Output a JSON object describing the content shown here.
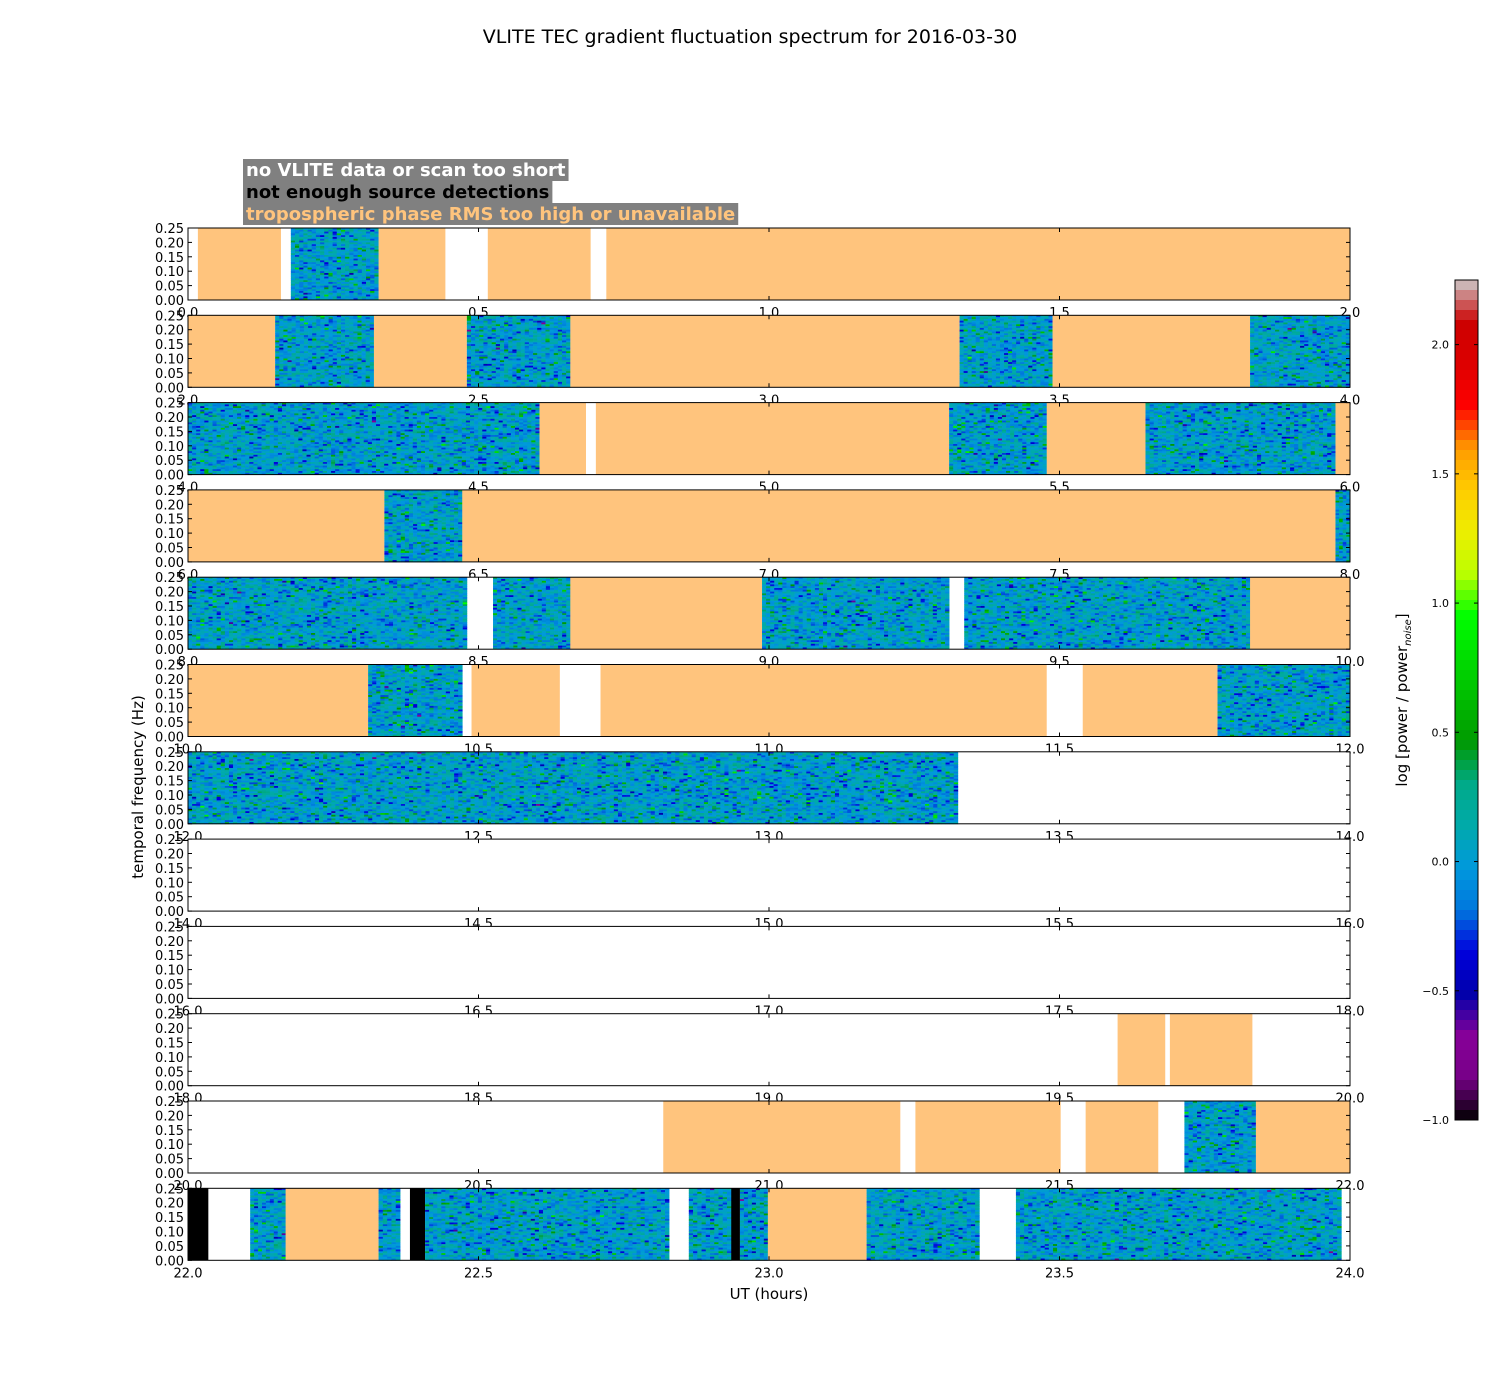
{
  "chart_data": {
    "type": "heatmap",
    "title": "VLITE TEC gradient fluctuation spectrum for 2016-03-30",
    "xlabel": "UT (hours)",
    "ylabel": "temporal frequency (Hz)",
    "ylim": [
      0,
      0.25
    ],
    "yticks": [
      "0.00",
      "0.05",
      "0.10",
      "0.15",
      "0.20",
      "0.25"
    ],
    "colorbar": {
      "label_base": "log [power / power",
      "label_sub": "noise",
      "label_end": "]",
      "range": [
        -1.0,
        2.25
      ],
      "ticks": [
        "−1.0",
        "−0.5",
        "0.0",
        "0.5",
        "1.0",
        "1.5",
        "2.0"
      ],
      "colormap": "nipy_spectral"
    },
    "legend": [
      {
        "text": "no VLITE data or scan too short",
        "color": "#ffffff"
      },
      {
        "text": "not enough source detections",
        "color": "#000000"
      },
      {
        "text": "tropospheric phase RMS too high or unavailable",
        "color": "#ffc47d"
      }
    ],
    "legend_background": "#808080",
    "category_colors": {
      "none": "#ffffff",
      "detect": "#000000",
      "tropo": "#ffc47d"
    },
    "panels": [
      {
        "xlim": [
          0,
          2
        ],
        "xticks": [
          "0.0",
          "0.5",
          "1.0",
          "1.5",
          "2.0"
        ],
        "segments": [
          [
            0,
            0.017,
            "none"
          ],
          [
            0.017,
            0.16,
            "tropo"
          ],
          [
            0.16,
            0.177,
            "none"
          ],
          [
            0.177,
            0.328,
            "spec"
          ],
          [
            0.328,
            0.443,
            "tropo"
          ],
          [
            0.443,
            0.516,
            "none"
          ],
          [
            0.516,
            0.693,
            "tropo"
          ],
          [
            0.693,
            0.72,
            "none"
          ],
          [
            0.72,
            2.0,
            "tropo"
          ]
        ]
      },
      {
        "xlim": [
          2,
          4
        ],
        "xticks": [
          "2.0",
          "2.5",
          "3.0",
          "3.5",
          "4.0"
        ],
        "segments": [
          [
            2.0,
            2.15,
            "tropo"
          ],
          [
            2.15,
            2.32,
            "spec"
          ],
          [
            2.32,
            2.48,
            "tropo"
          ],
          [
            2.48,
            2.658,
            "spec"
          ],
          [
            2.658,
            3.328,
            "tropo"
          ],
          [
            3.328,
            3.488,
            "spec"
          ],
          [
            3.488,
            3.828,
            "tropo"
          ],
          [
            3.828,
            4.0,
            "spec"
          ]
        ]
      },
      {
        "xlim": [
          4,
          6
        ],
        "xticks": [
          "4.0",
          "4.5",
          "5.0",
          "5.5",
          "6.0"
        ],
        "segments": [
          [
            4.0,
            4.605,
            "spec"
          ],
          [
            4.605,
            4.685,
            "tropo"
          ],
          [
            4.685,
            4.702,
            "none"
          ],
          [
            4.702,
            5.31,
            "tropo"
          ],
          [
            5.31,
            5.478,
            "spec"
          ],
          [
            5.478,
            5.648,
            "tropo"
          ],
          [
            5.648,
            5.975,
            "spec"
          ],
          [
            5.975,
            6.0,
            "tropo"
          ]
        ]
      },
      {
        "xlim": [
          6,
          8
        ],
        "xticks": [
          "6.0",
          "6.5",
          "7.0",
          "7.5",
          "8.0"
        ],
        "segments": [
          [
            6.0,
            6.338,
            "tropo"
          ],
          [
            6.338,
            6.472,
            "spec"
          ],
          [
            6.472,
            7.975,
            "tropo"
          ],
          [
            7.975,
            8.0,
            "spec"
          ]
        ]
      },
      {
        "xlim": [
          8,
          10
        ],
        "xticks": [
          "8.0",
          "8.5",
          "9.0",
          "9.5",
          "10.0"
        ],
        "segments": [
          [
            8.0,
            8.48,
            "spec"
          ],
          [
            8.48,
            8.525,
            "none"
          ],
          [
            8.525,
            8.658,
            "spec"
          ],
          [
            8.658,
            8.988,
            "tropo"
          ],
          [
            8.988,
            9.31,
            "spec"
          ],
          [
            9.31,
            9.336,
            "none"
          ],
          [
            9.336,
            9.828,
            "spec"
          ],
          [
            9.828,
            10.0,
            "tropo"
          ]
        ]
      },
      {
        "xlim": [
          10,
          12
        ],
        "xticks": [
          "10.0",
          "10.5",
          "11.0",
          "11.5",
          "12.0"
        ],
        "segments": [
          [
            10.0,
            10.31,
            "tropo"
          ],
          [
            10.31,
            10.472,
            "spec"
          ],
          [
            10.472,
            10.488,
            "none"
          ],
          [
            10.488,
            10.64,
            "tropo"
          ],
          [
            10.64,
            10.71,
            "none"
          ],
          [
            10.71,
            11.478,
            "tropo"
          ],
          [
            11.478,
            11.54,
            "none"
          ],
          [
            11.54,
            11.772,
            "tropo"
          ],
          [
            11.772,
            12.0,
            "spec"
          ]
        ]
      },
      {
        "xlim": [
          12,
          14
        ],
        "xticks": [
          "12.0",
          "12.5",
          "13.0",
          "13.5",
          "14.0"
        ],
        "segments": [
          [
            12.0,
            13.325,
            "spec"
          ],
          [
            13.325,
            14.0,
            "none"
          ]
        ]
      },
      {
        "xlim": [
          14,
          16
        ],
        "xticks": [
          "14.0",
          "14.5",
          "15.0",
          "15.5",
          "16.0"
        ],
        "segments": [
          [
            14.0,
            16.0,
            "none"
          ]
        ]
      },
      {
        "xlim": [
          16,
          18
        ],
        "xticks": [
          "16.0",
          "16.5",
          "17.0",
          "17.5",
          "18.0"
        ],
        "segments": [
          [
            16.0,
            18.0,
            "none"
          ]
        ]
      },
      {
        "xlim": [
          18,
          20
        ],
        "xticks": [
          "18.0",
          "18.5",
          "19.0",
          "19.5",
          "20.0"
        ],
        "segments": [
          [
            18.0,
            19.6,
            "none"
          ],
          [
            19.6,
            19.682,
            "tropo"
          ],
          [
            19.682,
            19.69,
            "none"
          ],
          [
            19.69,
            19.832,
            "tropo"
          ],
          [
            19.832,
            20.0,
            "none"
          ]
        ]
      },
      {
        "xlim": [
          20,
          22
        ],
        "xticks": [
          "20.0",
          "20.5",
          "21.0",
          "21.5",
          "22.0"
        ],
        "segments": [
          [
            20.0,
            20.818,
            "none"
          ],
          [
            20.818,
            21.226,
            "tropo"
          ],
          [
            21.226,
            21.252,
            "none"
          ],
          [
            21.252,
            21.502,
            "tropo"
          ],
          [
            21.502,
            21.545,
            "none"
          ],
          [
            21.545,
            21.67,
            "tropo"
          ],
          [
            21.67,
            21.715,
            "none"
          ],
          [
            21.715,
            21.838,
            "spec"
          ],
          [
            21.838,
            22.0,
            "tropo"
          ]
        ]
      },
      {
        "xlim": [
          22,
          24
        ],
        "xticks": [
          "22.0",
          "22.5",
          "23.0",
          "23.5",
          "24.0"
        ],
        "segments": [
          [
            22.0,
            22.035,
            "detect"
          ],
          [
            22.035,
            22.107,
            "none"
          ],
          [
            22.107,
            22.168,
            "spec"
          ],
          [
            22.168,
            22.328,
            "tropo"
          ],
          [
            22.328,
            22.365,
            "spec"
          ],
          [
            22.365,
            22.382,
            "none"
          ],
          [
            22.382,
            22.408,
            "detect"
          ],
          [
            22.408,
            22.828,
            "spec"
          ],
          [
            22.828,
            22.862,
            "none"
          ],
          [
            22.862,
            22.935,
            "spec"
          ],
          [
            22.935,
            22.95,
            "detect"
          ],
          [
            22.95,
            22.998,
            "spec"
          ],
          [
            22.998,
            23.168,
            "tropo"
          ],
          [
            23.168,
            23.362,
            "spec"
          ],
          [
            23.362,
            23.425,
            "none"
          ],
          [
            23.425,
            23.985,
            "spec"
          ],
          [
            23.985,
            24.0,
            "none"
          ]
        ]
      }
    ]
  }
}
